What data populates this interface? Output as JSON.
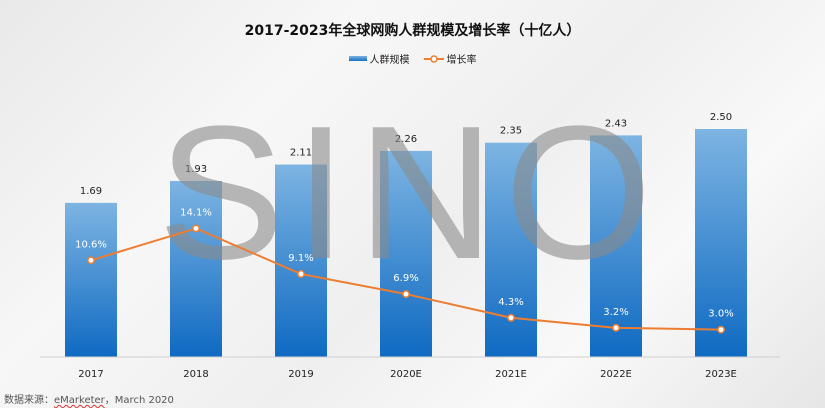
{
  "chart_data": {
    "type": "bar+line",
    "title": "2017-2023年全球网购人群规模及增长率（十亿人）",
    "categories": [
      "2017",
      "2018",
      "2019",
      "2020E",
      "2021E",
      "2022E",
      "2023E"
    ],
    "series": [
      {
        "name": "人群规模",
        "type": "bar",
        "values": [
          1.69,
          1.93,
          2.11,
          2.26,
          2.35,
          2.43,
          2.5
        ],
        "labels": [
          "1.69",
          "1.93",
          "2.11",
          "2.26",
          "2.35",
          "2.43",
          "2.50"
        ],
        "color": "#1670c4"
      },
      {
        "name": "增长率",
        "type": "line",
        "values": [
          10.6,
          14.1,
          9.1,
          6.9,
          4.3,
          3.2,
          3.0
        ],
        "labels": [
          "10.6%",
          "14.1%",
          "9.1%",
          "6.9%",
          "4.3%",
          "3.2%",
          "3.0%"
        ],
        "color": "#ed7d31"
      }
    ],
    "ylim": [
      0,
      2.5
    ],
    "y2lim": [
      0,
      25
    ],
    "grid": false,
    "legend": "top"
  },
  "watermark": "SINO",
  "source": {
    "prefix": "数据来源：",
    "name": "eMarketer",
    "suffix": "，March 2020"
  }
}
